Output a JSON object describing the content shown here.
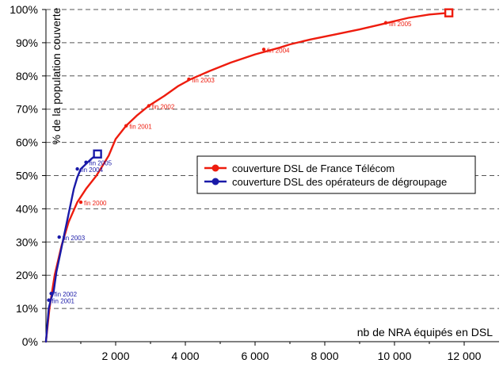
{
  "chart_data": {
    "type": "line",
    "title": "",
    "xlabel": "nb de NRA équipés en DSL",
    "ylabel": "% de la population couverte",
    "xlim": [
      0,
      13000
    ],
    "ylim": [
      0,
      100
    ],
    "x_ticks": [
      2000,
      4000,
      6000,
      8000,
      10000,
      12000
    ],
    "x_tick_labels": [
      "2 000",
      "4 000",
      "6 000",
      "8 000",
      "10 000",
      "12 000"
    ],
    "y_ticks": [
      0,
      10,
      20,
      30,
      40,
      50,
      60,
      70,
      80,
      90,
      100
    ],
    "y_tick_labels": [
      "0%",
      "10%",
      "20%",
      "30%",
      "40%",
      "50%",
      "60%",
      "70%",
      "80%",
      "90%",
      "100%"
    ],
    "grid": "horizontal dashed",
    "legend_position": "center-right",
    "series": [
      {
        "name": "couverture DSL de France Télécom",
        "color": "#ee1c0e",
        "x": [
          0,
          100,
          250,
          450,
          650,
          900,
          1150,
          1450,
          1800,
          2000,
          2300,
          2600,
          2950,
          3400,
          3800,
          4150,
          4700,
          5300,
          6000,
          6700,
          7000,
          7600,
          8300,
          9000,
          9600,
          9800,
          10400,
          11000,
          11560
        ],
        "y": [
          0,
          10,
          20,
          29,
          36,
          42,
          46,
          50,
          56,
          61,
          65,
          68,
          71,
          74,
          77,
          79,
          81.5,
          84,
          86.5,
          88.5,
          89.5,
          91,
          92.5,
          94,
          95.5,
          96,
          97.5,
          98.5,
          99
        ]
      },
      {
        "name": "couverture DSL des opérateurs de dégroupage",
        "color": "#1a1aa8",
        "x": [
          0,
          80,
          150,
          220,
          300,
          400,
          500,
          600,
          700,
          800,
          900,
          1000,
          1150,
          1300,
          1480
        ],
        "y": [
          0,
          10,
          13,
          15,
          21,
          26,
          31,
          36,
          41,
          46,
          49.5,
          52,
          53.5,
          55,
          56.5
        ]
      }
    ],
    "annotations": [
      {
        "series": 0,
        "text": "fin 2000",
        "x": 1000,
        "y": 42
      },
      {
        "series": 0,
        "text": "fin 2001",
        "x": 2300,
        "y": 65
      },
      {
        "series": 0,
        "text": "fin 2002",
        "x": 2950,
        "y": 71
      },
      {
        "series": 0,
        "text": "fin 2003",
        "x": 4100,
        "y": 79
      },
      {
        "series": 0,
        "text": "fin 2004",
        "x": 6250,
        "y": 88
      },
      {
        "series": 0,
        "text": "fin 2005",
        "x": 9750,
        "y": 96
      },
      {
        "series": 1,
        "text": "fin 2001",
        "x": 80,
        "y": 12.5
      },
      {
        "series": 1,
        "text": "fin 2002",
        "x": 150,
        "y": 14.5
      },
      {
        "series": 1,
        "text": "fin 2003",
        "x": 380,
        "y": 31.5
      },
      {
        "series": 1,
        "text": "fin 2004",
        "x": 900,
        "y": 52
      },
      {
        "series": 1,
        "text": "fin 2005",
        "x": 1150,
        "y": 54
      }
    ],
    "end_markers": [
      {
        "series": 0,
        "x": 11560,
        "y": 99
      },
      {
        "series": 1,
        "x": 1480,
        "y": 56.5
      }
    ]
  }
}
